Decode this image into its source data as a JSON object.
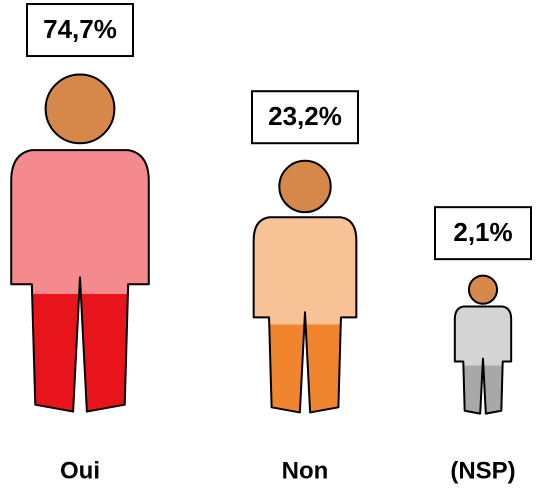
{
  "chart_data": {
    "type": "pictogram",
    "categories": [
      "Oui",
      "Non",
      "(NSP)"
    ],
    "values": [
      74.7,
      23.2,
      2.1
    ],
    "value_labels": [
      "74,7%",
      "23,2%",
      "2,1%"
    ],
    "colors": [
      "#e8141c",
      "#f0852e",
      "#a8a8a8"
    ]
  }
}
